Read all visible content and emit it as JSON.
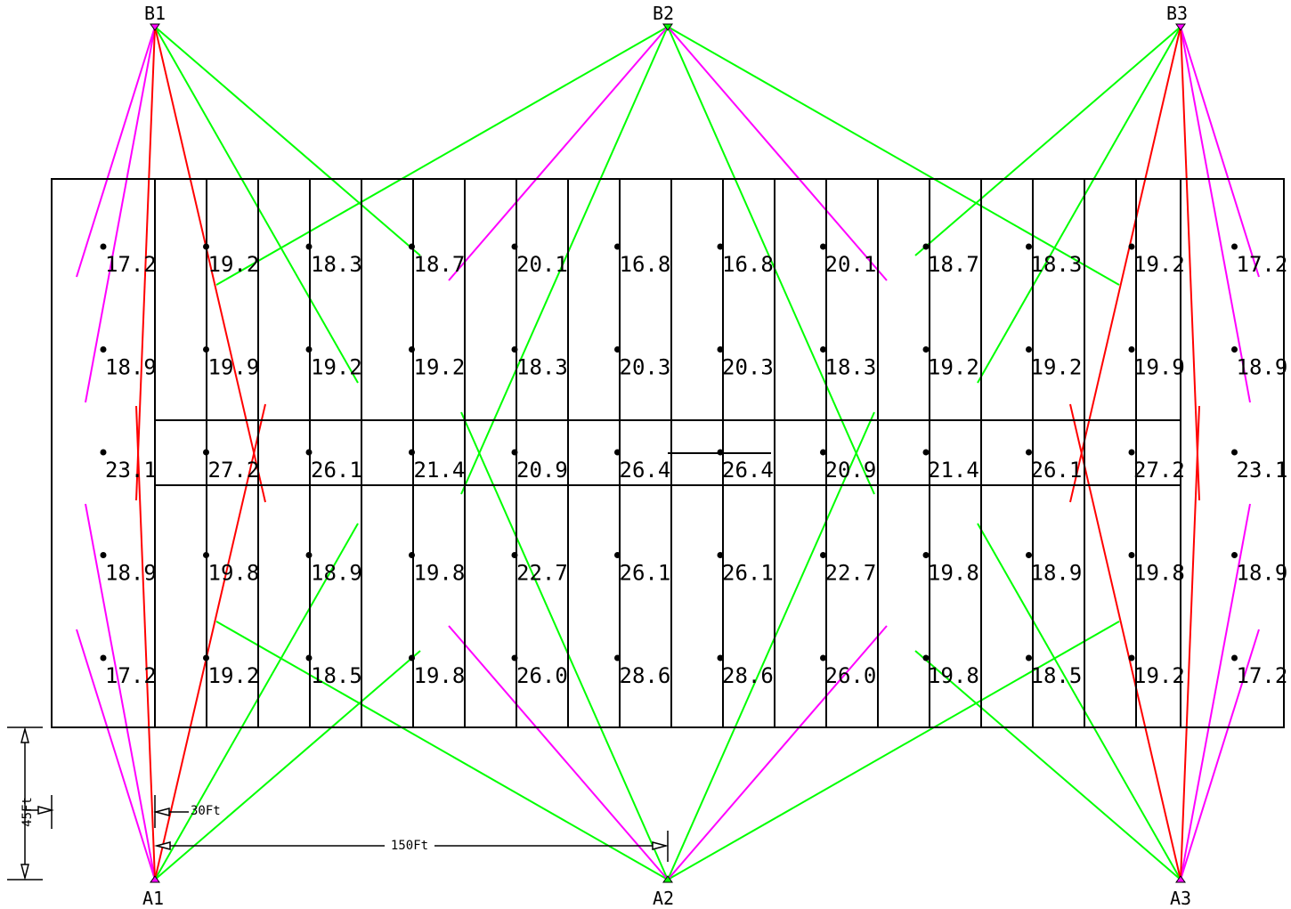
{
  "colors": {
    "line": "#000000",
    "green_aim": "#00ff00",
    "magenta_aim": "#ff00ff",
    "red_aim": "#ff0000",
    "min_value": "#0000ff",
    "max_value": "#ff0000"
  },
  "poles": [
    {
      "id": "B1",
      "label": "B1"
    },
    {
      "id": "B2",
      "label": "B2"
    },
    {
      "id": "B3",
      "label": "B3"
    },
    {
      "id": "A1",
      "label": "A1"
    },
    {
      "id": "A2",
      "label": "A2"
    },
    {
      "id": "A3",
      "label": "A3"
    }
  ],
  "dimensions": {
    "pole_spacing": "150Ft",
    "setback": "30Ft",
    "height": "45Ft"
  },
  "grid": {
    "rows": [
      [
        {
          "v": "17.2"
        },
        {
          "v": "19.2"
        },
        {
          "v": "18.3"
        },
        {
          "v": "18.7"
        },
        {
          "v": "20.1"
        },
        {
          "v": "16.8",
          "mark": "min"
        },
        {
          "v": "16.8",
          "mark": "min"
        },
        {
          "v": "20.1"
        },
        {
          "v": "18.7"
        },
        {
          "v": "18.3"
        },
        {
          "v": "19.2"
        },
        {
          "v": "17.2"
        }
      ],
      [
        {
          "v": "18.9"
        },
        {
          "v": "19.9"
        },
        {
          "v": "19.2"
        },
        {
          "v": "19.2"
        },
        {
          "v": "18.3"
        },
        {
          "v": "20.3"
        },
        {
          "v": "20.3"
        },
        {
          "v": "18.3"
        },
        {
          "v": "19.2"
        },
        {
          "v": "19.2"
        },
        {
          "v": "19.9"
        },
        {
          "v": "18.9"
        }
      ],
      [
        {
          "v": "23.1"
        },
        {
          "v": "27.2"
        },
        {
          "v": "26.1"
        },
        {
          "v": "21.4"
        },
        {
          "v": "20.9"
        },
        {
          "v": "26.4"
        },
        {
          "v": "26.4"
        },
        {
          "v": "20.9"
        },
        {
          "v": "21.4"
        },
        {
          "v": "26.1"
        },
        {
          "v": "27.2"
        },
        {
          "v": "23.1"
        }
      ],
      [
        {
          "v": "18.9"
        },
        {
          "v": "19.8"
        },
        {
          "v": "18.9"
        },
        {
          "v": "19.8"
        },
        {
          "v": "22.7"
        },
        {
          "v": "26.1"
        },
        {
          "v": "26.1"
        },
        {
          "v": "22.7"
        },
        {
          "v": "19.8"
        },
        {
          "v": "18.9"
        },
        {
          "v": "19.8"
        },
        {
          "v": "18.9"
        }
      ],
      [
        {
          "v": "17.2"
        },
        {
          "v": "19.2"
        },
        {
          "v": "18.5"
        },
        {
          "v": "19.8"
        },
        {
          "v": "26.0"
        },
        {
          "v": "28.6",
          "mark": "max"
        },
        {
          "v": "28.6",
          "mark": "max"
        },
        {
          "v": "26.0"
        },
        {
          "v": "19.8"
        },
        {
          "v": "18.5"
        },
        {
          "v": "19.2"
        },
        {
          "v": "17.2"
        }
      ]
    ]
  }
}
